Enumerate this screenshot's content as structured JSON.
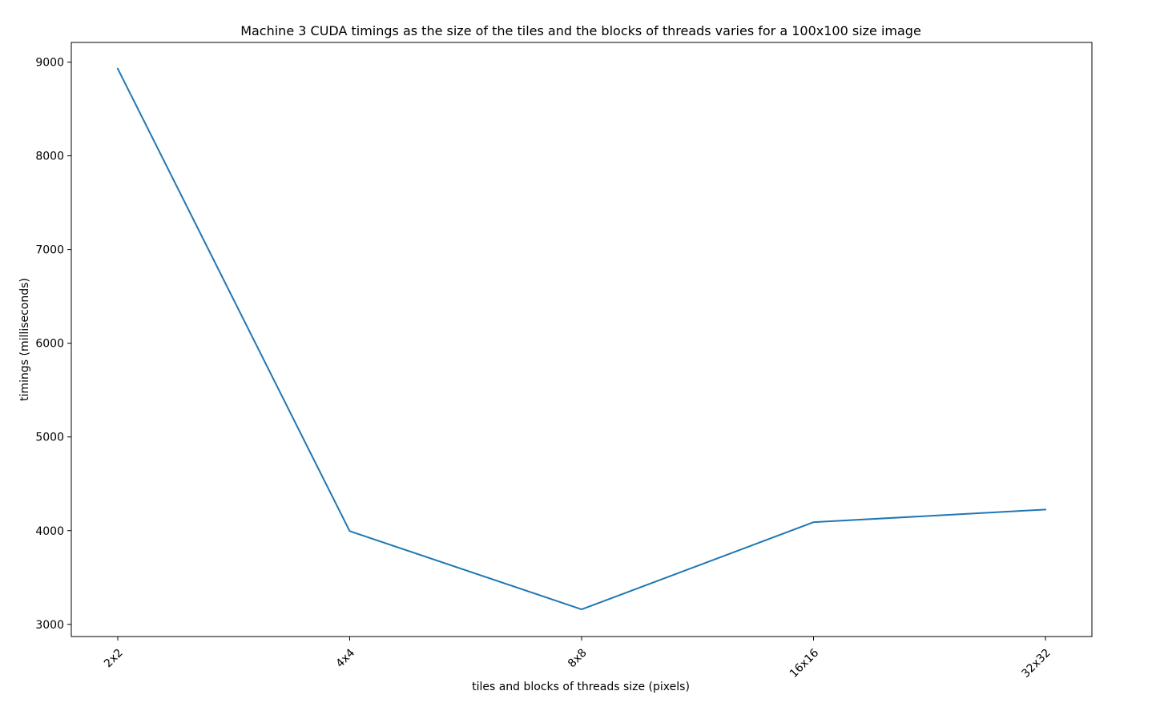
{
  "chart_data": {
    "type": "line",
    "title": "Machine 3 CUDA timings as the size of the tiles and the blocks of threads varies for a 100x100 size image",
    "xlabel": "tiles and blocks of threads size (pixels)",
    "ylabel": "timings (milliseconds)",
    "categories": [
      "2x2",
      "4x4",
      "8x8",
      "16x16",
      "32x32"
    ],
    "series": [
      {
        "values": [
          8930,
          3995,
          3160,
          4090,
          4225
        ],
        "color": "#1f77b4"
      }
    ],
    "yticks": [
      3000,
      4000,
      5000,
      6000,
      7000,
      8000,
      9000
    ],
    "ylim": [
      2870,
      9210
    ],
    "grid": false,
    "legend": "none"
  }
}
